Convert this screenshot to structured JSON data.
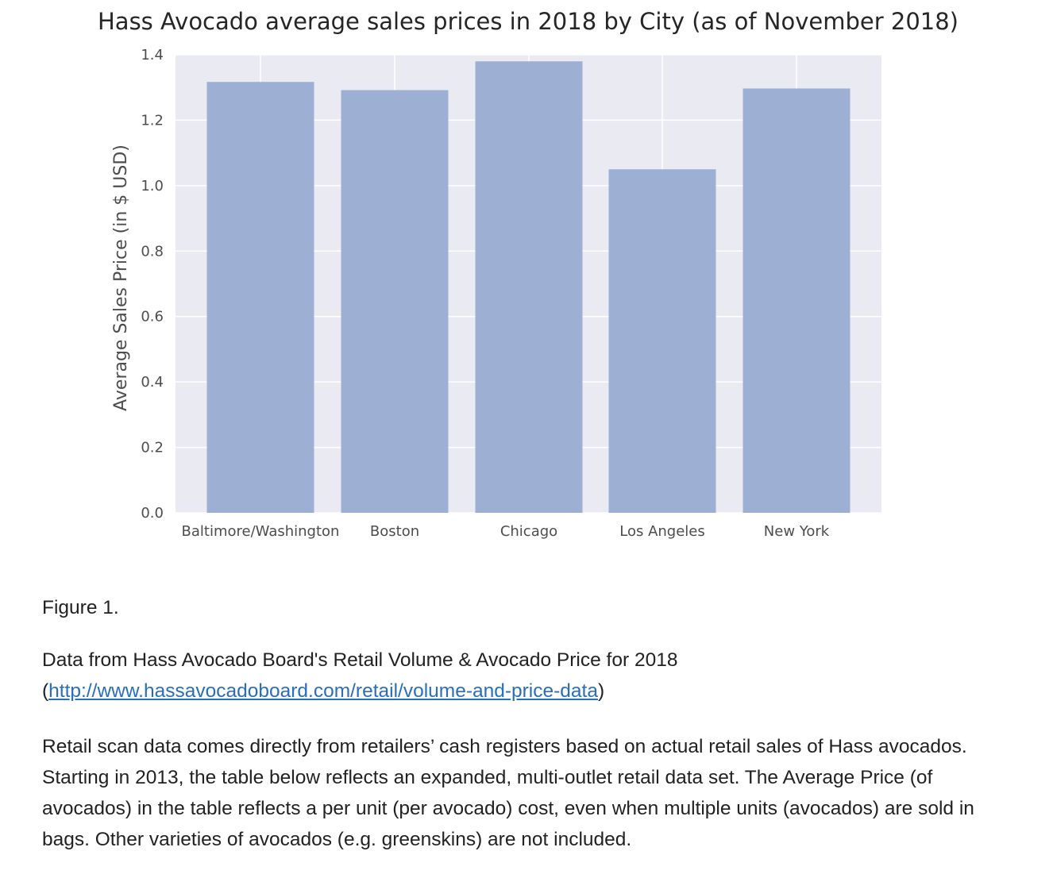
{
  "chart_data": {
    "type": "bar",
    "title": "Hass Avocado average sales prices in 2018 by City (as of November 2018)",
    "xlabel": "",
    "ylabel": "Average Sales Price (in $ USD)",
    "categories": [
      "Baltimore/Washington",
      "Boston",
      "Chicago",
      "Los Angeles",
      "New York"
    ],
    "values": [
      1.317,
      1.292,
      1.38,
      1.05,
      1.297
    ],
    "ylim": [
      0,
      1.4
    ],
    "yticks": [
      "0.0",
      "0.2",
      "0.4",
      "0.6",
      "0.8",
      "1.0",
      "1.2",
      "1.4"
    ],
    "grid": true,
    "bar_color": "#9db0d3",
    "background_color": "#eaeaf2"
  },
  "figure_label": "Figure 1.",
  "source": {
    "text_before": "Data from Hass Avocado Board's Retail Volume & Avocado Price for 2018",
    "paren_open": "(",
    "link_text": "http://www.hassavocadoboard.com/retail/volume-and-price-data",
    "paren_close": ")"
  },
  "description": "Retail scan data comes directly from retailers’ cash registers based on actual retail sales of Hass avocados. Starting in 2013, the table below reflects an expanded, multi-outlet retail data set. The Average Price (of avocados) in the table reflects a per unit (per avocado) cost, even when multiple units (avocados) are sold in bags. Other varieties of avocados (e.g. greenskins) are not included."
}
